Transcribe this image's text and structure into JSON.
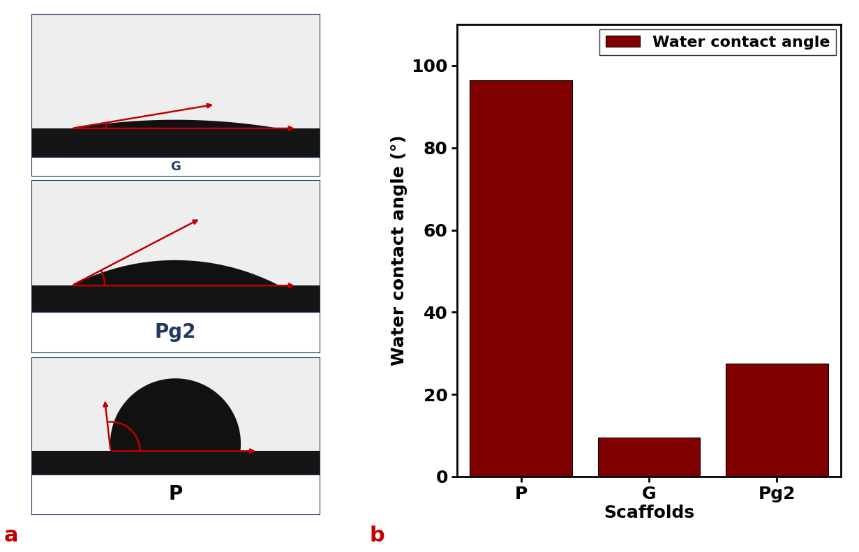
{
  "chart_data": {
    "type": "bar",
    "panel": "b",
    "x_label": "Scaffolds",
    "y_label": "Water contact angle (°)",
    "categories": [
      "P",
      "G",
      "Pg2"
    ],
    "series": [
      {
        "name": "Water contact angle",
        "color": "#800000",
        "values": [
          96.5,
          9.5,
          27.5
        ]
      }
    ],
    "ylim": [
      0,
      110
    ],
    "yticks": [
      0,
      20,
      40,
      60,
      80,
      100
    ],
    "legend": "upper right"
  },
  "images": {
    "panel": "a",
    "samples": [
      "G",
      "Pg2",
      "P"
    ]
  }
}
